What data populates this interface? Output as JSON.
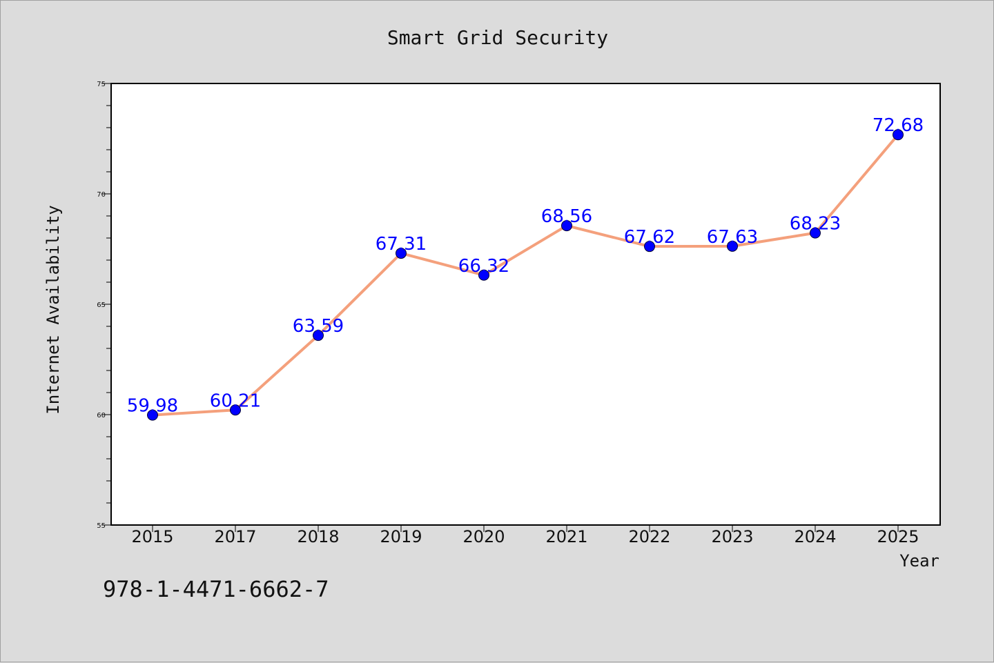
{
  "chart_data": {
    "type": "line",
    "title": "Smart Grid Security",
    "xlabel": "Year",
    "ylabel": "Internet Availability",
    "categories": [
      "2015",
      "2017",
      "2018",
      "2019",
      "2020",
      "2021",
      "2022",
      "2023",
      "2024",
      "2025"
    ],
    "series": [
      {
        "values": [
          59.98,
          60.21,
          63.59,
          67.31,
          66.32,
          68.56,
          67.62,
          67.63,
          68.23,
          72.68
        ],
        "line_color": "#f4a07c",
        "marker_color": "#0000ff"
      }
    ],
    "data_labels": [
      "59.98",
      "60.21",
      "63.59",
      "67.31",
      "66.32",
      "68.56",
      "67.62",
      "67.63",
      "68.23",
      "72.68"
    ],
    "ylim": [
      55,
      75
    ],
    "yticks": [
      55,
      60,
      65,
      70,
      75
    ],
    "grid": false,
    "legend": "none",
    "colors": {
      "background": "#dcdcdc",
      "plot_background": "#ffffff",
      "label_color": "#0000ff"
    }
  },
  "footer": {
    "isbn": "978-1-4471-6662-7"
  }
}
